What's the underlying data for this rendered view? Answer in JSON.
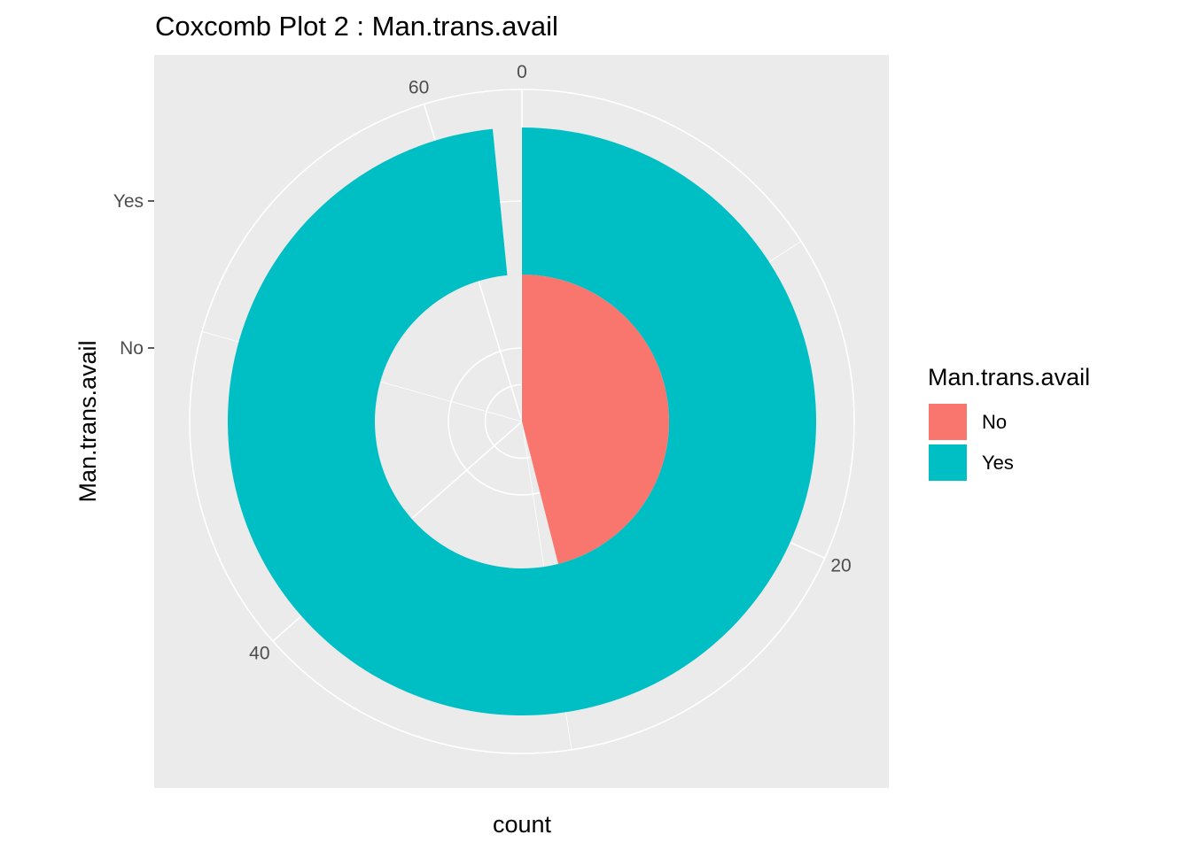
{
  "chart_data": {
    "type": "pie",
    "variant": "coxcomb",
    "title": "Coxcomb Plot 2 : Man.trans.avail",
    "xlabel": "count",
    "ylabel": "Man.trans.avail",
    "categories": [
      "No",
      "Yes"
    ],
    "values": [
      29,
      62
    ],
    "colors": [
      "#F8766D",
      "#00BFC4"
    ],
    "theta_range": [
      0,
      63
    ],
    "theta_ticks": [
      {
        "value": 0,
        "label": "0"
      },
      {
        "value": 20,
        "label": "20"
      },
      {
        "value": 40,
        "label": "40"
      },
      {
        "value": 60,
        "label": "60"
      }
    ],
    "radial_ticks": [
      {
        "category": "No",
        "label": "No"
      },
      {
        "category": "Yes",
        "label": "Yes"
      }
    ],
    "legend": {
      "title": "Man.trans.avail",
      "position": "right",
      "entries": [
        {
          "label": "No",
          "color": "#F8766D"
        },
        {
          "label": "Yes",
          "color": "#00BFC4"
        }
      ]
    },
    "panel_background": "#EBEBEB",
    "grid_color": "#FFFFFF",
    "grid": true
  }
}
